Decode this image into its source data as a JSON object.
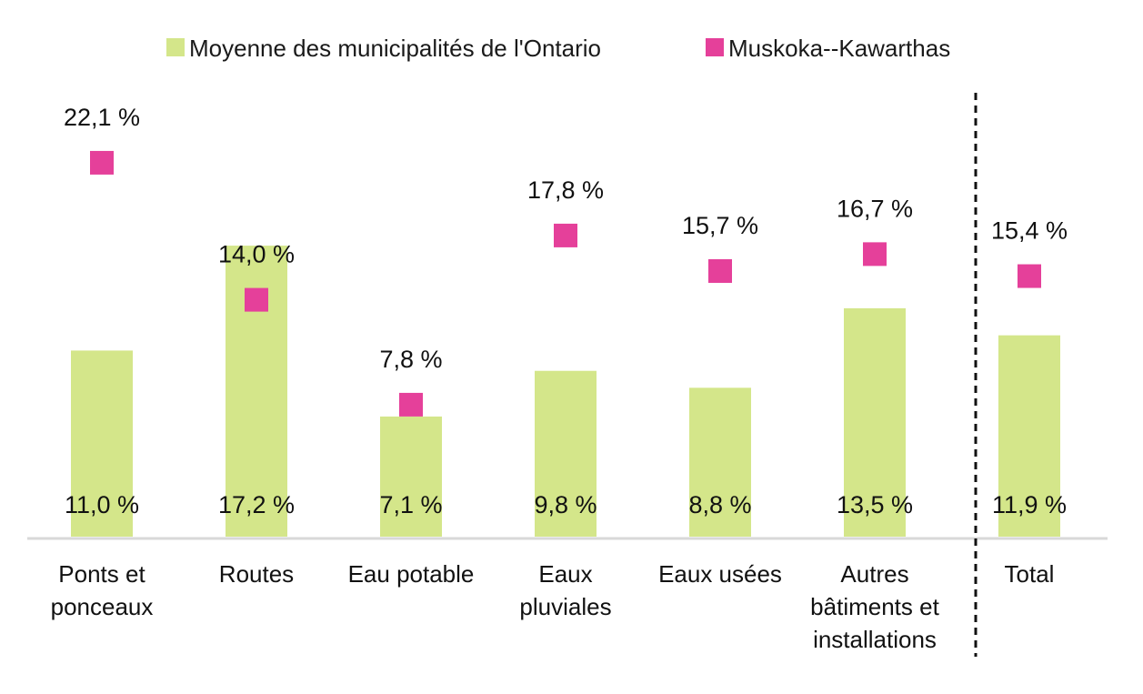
{
  "chart_data": {
    "type": "bar",
    "categories": [
      [
        "Ponts et",
        "ponceaux"
      ],
      [
        "Routes"
      ],
      [
        "Eau potable"
      ],
      [
        "Eaux",
        "pluviales"
      ],
      [
        "Eaux usées"
      ],
      [
        "Autres",
        "bâtiments et",
        "installations"
      ],
      [
        "Total"
      ]
    ],
    "series": [
      {
        "name": "Moyenne des municipalités de l'Ontario",
        "kind": "bar",
        "color": "#d4e68a",
        "values": [
          11.0,
          17.2,
          7.1,
          9.8,
          8.8,
          13.5,
          11.9
        ],
        "labels": [
          "11,0 %",
          "17,2 %",
          "7,1 %",
          "9,8 %",
          "8,8 %",
          "13,5 %",
          "11,9 %"
        ]
      },
      {
        "name": "Muskoka--Kawarthas",
        "kind": "marker",
        "color": "#e5409a",
        "values": [
          22.1,
          14.0,
          7.8,
          17.8,
          15.7,
          16.7,
          15.4
        ],
        "labels": [
          "22,1 %",
          "14,0 %",
          "7,8 %",
          "17,8 %",
          "15,7 %",
          "16,7 %",
          "15,4 %"
        ]
      }
    ],
    "ylim": [
      0,
      25
    ],
    "grid": false,
    "legend_position": "top",
    "separator_before": "Total"
  }
}
